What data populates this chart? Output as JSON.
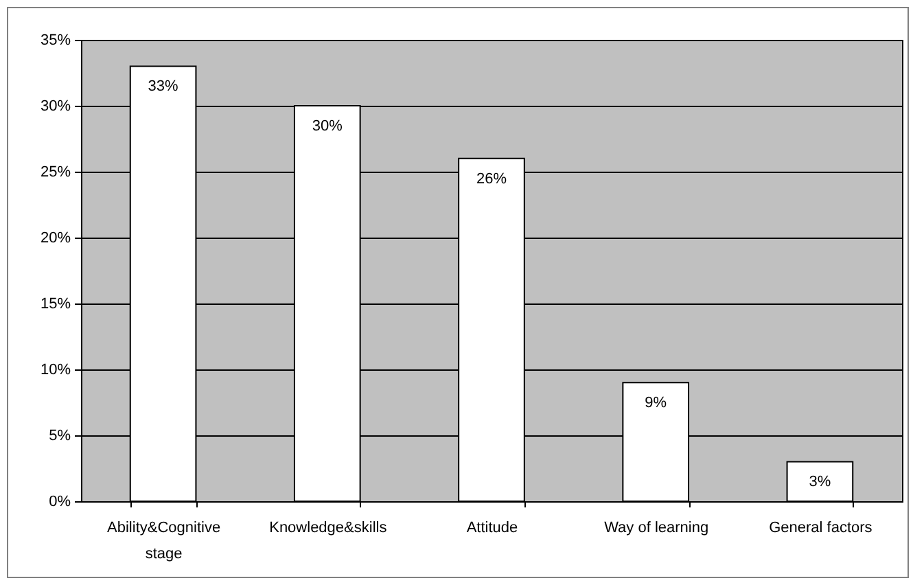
{
  "chart_data": {
    "type": "bar",
    "categories": [
      "Ability&Cognitive stage",
      "Knowledge&skills",
      "Attitude",
      "Way of learning",
      "General factors"
    ],
    "values": [
      33,
      30,
      26,
      9,
      3
    ],
    "color": "#ffffff",
    "value_labels": [
      "33%",
      "30%",
      "26%",
      "9%",
      "3%"
    ],
    "ylim": [
      0,
      35
    ],
    "yticks": [
      {
        "value": 0,
        "label": "0%"
      },
      {
        "value": 5,
        "label": "5%"
      },
      {
        "value": 10,
        "label": "10%"
      },
      {
        "value": 15,
        "label": "15%"
      },
      {
        "value": 20,
        "label": "20%"
      },
      {
        "value": 25,
        "label": "25%"
      },
      {
        "value": 30,
        "label": "30%"
      },
      {
        "value": 35,
        "label": "35%"
      }
    ],
    "grid": "y"
  }
}
